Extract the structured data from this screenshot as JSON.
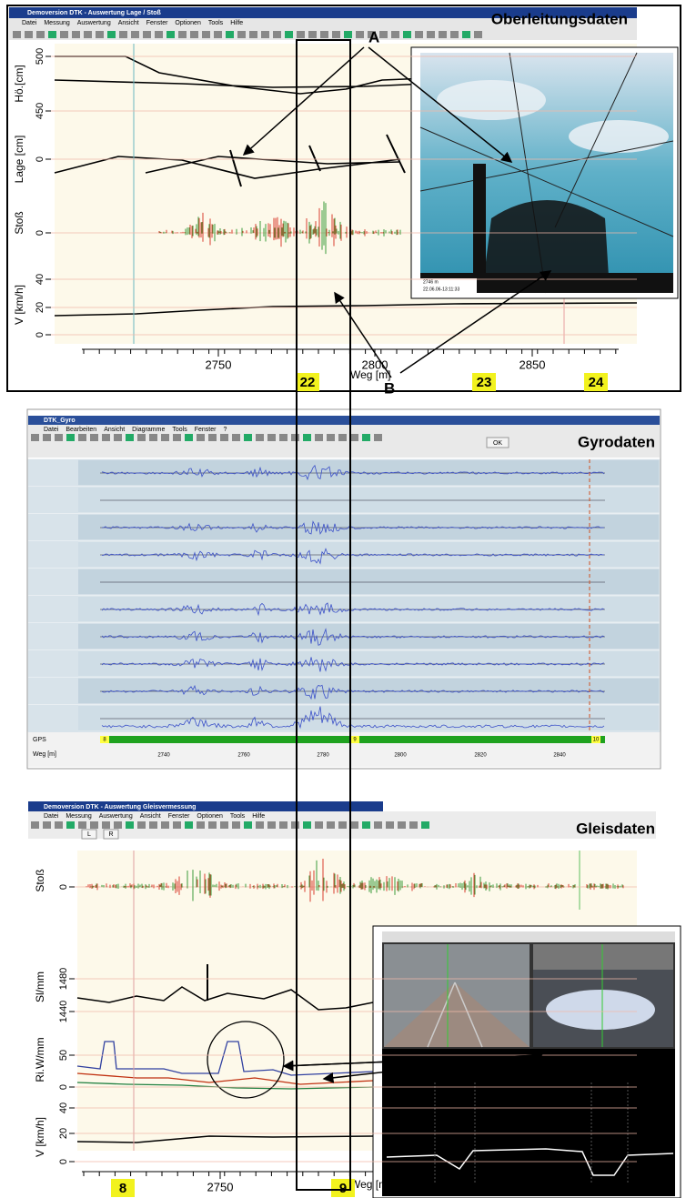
{
  "callouts": {
    "a": "A",
    "b": "B"
  },
  "overhead": {
    "title": "Demoversion DTK - Auswertung Lage / Stoß",
    "menu": [
      "Datei",
      "Messung",
      "Auswertung",
      "Ansicht",
      "Fenster",
      "Optionen",
      "Tools",
      "Hilfe"
    ],
    "heading": "Oberleitungsdaten",
    "axes": [
      {
        "label": "Hö.[cm]",
        "ticks": [
          500,
          450
        ]
      },
      {
        "label": "Lage [cm]",
        "ticks": [
          0
        ]
      },
      {
        "label": "Stoß",
        "ticks": [
          0
        ]
      },
      {
        "label": "V [km/h]",
        "ticks": [
          40,
          20,
          0
        ]
      }
    ],
    "x_ticks": [
      2750,
      2800,
      2850
    ],
    "x_label": "Weg [m]",
    "markers": [
      "22",
      "23",
      "24"
    ],
    "photo_caption": [
      "2746 m",
      "22.06.06-13:11:33"
    ]
  },
  "gyro": {
    "title": "DTK_Gyro",
    "menu": [
      "Datei",
      "Bearbeiten",
      "Ansicht",
      "Diagramme",
      "Tools",
      "Fenster",
      "?"
    ],
    "button": "OK",
    "heading": "Gyrodaten",
    "gps_label": "GPS",
    "gps_markers": [
      "8",
      "9",
      "10"
    ],
    "x_label": "Weg [m]",
    "x_ticks": [
      2740,
      2760,
      2780,
      2800,
      2820,
      2840
    ]
  },
  "track": {
    "title": "Demoversion DTK - Auswertung Gleisvermessung",
    "menu": [
      "Datei",
      "Messung",
      "Auswertung",
      "Ansicht",
      "Fenster",
      "Optionen",
      "Tools",
      "Hilfe"
    ],
    "toolbar": [
      "L",
      "R"
    ],
    "heading": "Gleisdaten",
    "axes": [
      {
        "label": "Stoß",
        "ticks": [
          0
        ]
      },
      {
        "label": "Sl/mm",
        "ticks": [
          1480,
          1440
        ]
      },
      {
        "label": "Ri.W/mm",
        "ticks": [
          50,
          0
        ]
      },
      {
        "label": "V [km/h]",
        "ticks": [
          40,
          20,
          0
        ]
      }
    ],
    "x_ticks": [
      2750
    ],
    "x_label": "Weg [m]",
    "markers": [
      "8",
      "9"
    ]
  }
}
